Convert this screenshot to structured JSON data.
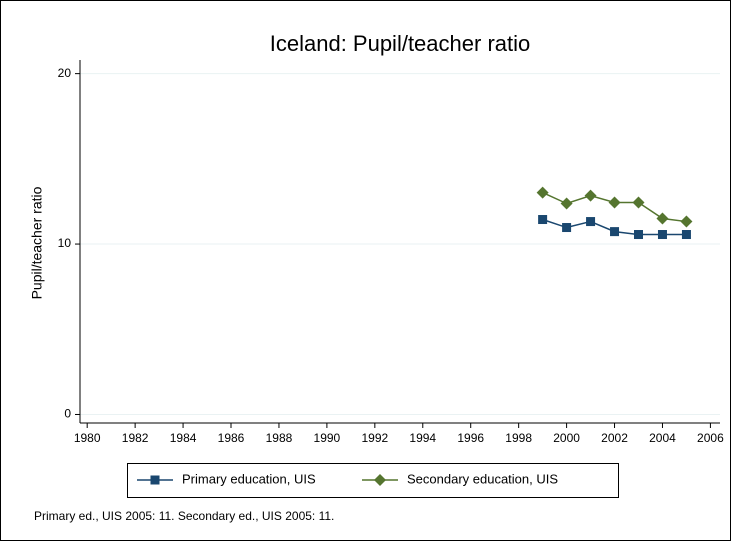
{
  "chart_data": {
    "type": "line",
    "title": "Iceland: Pupil/teacher ratio",
    "y_label": "Pupil/teacher ratio",
    "note": "Primary ed., UIS 2005: 11. Secondary ed., UIS 2005: 11.",
    "x": [
      1999,
      2000,
      2001,
      2002,
      2003,
      2004,
      2005
    ],
    "series": [
      {
        "name": "Primary education, UIS",
        "color": "#1a476f",
        "marker": "square",
        "values": [
          11.44,
          10.97,
          11.32,
          10.73,
          10.56,
          10.56,
          10.56
        ]
      },
      {
        "name": "Secondary education, UIS",
        "color": "#55752f",
        "marker": "diamond",
        "values": [
          13.02,
          12.38,
          12.84,
          12.44,
          12.44,
          11.5,
          11.32
        ]
      }
    ],
    "xlim": [
      1979.7,
      2006.4
    ],
    "xticks": [
      1980,
      1982,
      1984,
      1986,
      1988,
      1990,
      1992,
      1994,
      1996,
      1998,
      2000,
      2002,
      2004,
      2006
    ],
    "ylim": [
      -0.5,
      20.8
    ],
    "yticks": [
      0,
      10,
      20
    ],
    "grid": true,
    "legend": "bottom"
  }
}
